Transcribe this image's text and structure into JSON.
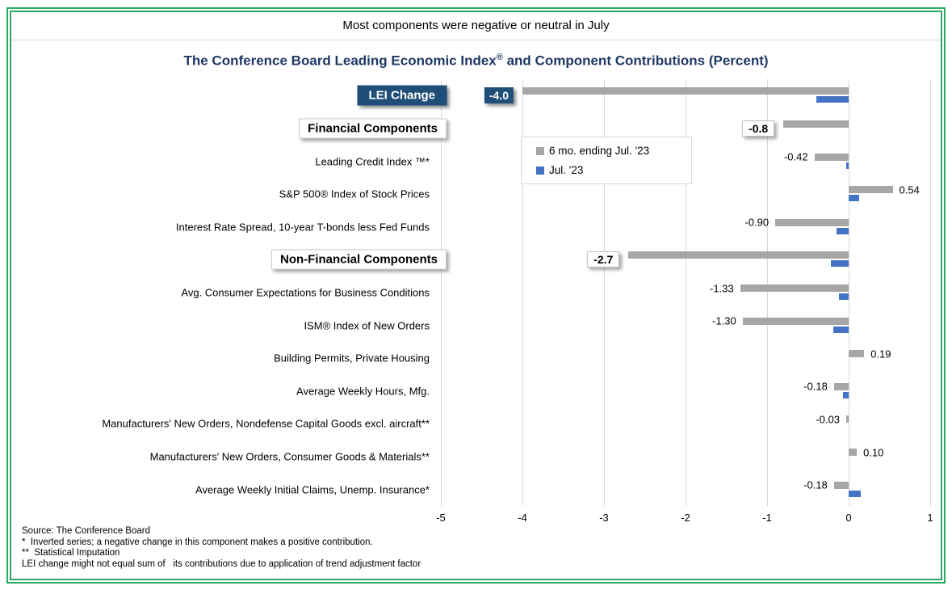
{
  "banner": {
    "text": "Most components were negative or neutral in July"
  },
  "title": {
    "part1": "The Conference Board Leading Economic Index",
    "registered": "®",
    "part2": " and Component Contributions (Percent)"
  },
  "chart_data": {
    "type": "bar",
    "orientation": "horizontal",
    "title": "The Conference Board Leading Economic Index® and Component Contributions (Percent)",
    "xlabel": "",
    "ylabel": "",
    "xlim": [
      -5,
      1
    ],
    "x_ticks": [
      -5,
      -4,
      -3,
      -2,
      -1,
      0,
      1
    ],
    "grid": true,
    "legend_position": "inside-top-left",
    "categories": [
      "LEI Change",
      "Financial Components",
      "Leading Credit Index ™*",
      "S&P 500® Index of Stock Prices",
      "Interest Rate Spread, 10-year T-bonds less Fed Funds",
      "Non-Financial Components",
      "Avg. Consumer Expectations for Business Conditions",
      "ISM® Index of New Orders",
      "Building Permits, Private Housing",
      "Average Weekly Hours, Mfg.",
      "Manufacturers' New Orders, Nondefense Capital Goods excl. aircraft**",
      "Manufacturers' New Orders, Consumer Goods & Materials**",
      "Average Weekly Initial Claims, Unemp. Insurance*"
    ],
    "category_styles": [
      "navy-box",
      "white-box",
      "plain",
      "plain",
      "plain",
      "white-box",
      "plain",
      "plain",
      "plain",
      "plain",
      "plain",
      "plain",
      "plain"
    ],
    "label_styles": [
      "navy-box",
      "white-box",
      "plain",
      "plain",
      "plain",
      "white-box",
      "plain",
      "plain",
      "plain",
      "plain",
      "plain",
      "plain",
      "plain"
    ],
    "series": [
      {
        "name": "6 mo. ending Jul. '23",
        "color": "#A6A6A6",
        "values": [
          -4.0,
          -0.8,
          -0.42,
          0.54,
          -0.9,
          -2.7,
          -1.33,
          -1.3,
          0.19,
          -0.18,
          -0.03,
          0.1,
          -0.18
        ],
        "labels": [
          "-4.0",
          "-0.8",
          "-0.42",
          "0.54",
          "-0.90",
          "-2.7",
          "-1.33",
          "-1.30",
          "0.19",
          "-0.18",
          "-0.03",
          "0.10",
          "-0.18"
        ]
      },
      {
        "name": "Jul. '23",
        "color": "#4472C4",
        "values": [
          -0.4,
          0,
          -0.03,
          0.13,
          -0.15,
          -0.22,
          -0.12,
          -0.19,
          0,
          -0.07,
          0,
          0,
          0.15
        ]
      }
    ]
  },
  "footer": {
    "lines": [
      "Source: The Conference Board",
      "*  Inverted series; a negative change in this component makes a positive contribution.",
      "**  Statistical Imputation",
      "LEI change might not equal sum of   its contributions due to application of trend adjustment factor"
    ]
  },
  "colors": {
    "frame_green": "#2BAA63",
    "title_navy": "#1F3864",
    "box_navy": "#1F4E79",
    "bar_gray": "#A6A6A6",
    "bar_blue": "#4472C4",
    "gridline": "#D9D9D9",
    "banner_divider": "#D9D9D9"
  }
}
